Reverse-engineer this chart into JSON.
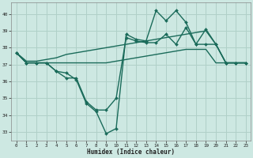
{
  "xlabel": "Humidex (Indice chaleur)",
  "xlim": [
    -0.5,
    23.5
  ],
  "ylim": [
    32.5,
    40.7
  ],
  "xticks": [
    0,
    1,
    2,
    3,
    4,
    5,
    6,
    7,
    8,
    9,
    10,
    11,
    12,
    13,
    14,
    15,
    16,
    17,
    18,
    19,
    20,
    21,
    22,
    23
  ],
  "yticks": [
    33,
    34,
    35,
    36,
    37,
    38,
    39,
    40
  ],
  "background_color": "#cde8e2",
  "grid_color": "#b0d0c8",
  "line_color": "#1a6b5a",
  "series": [
    {
      "x": [
        0,
        1,
        2,
        3,
        4,
        5,
        6,
        7,
        8,
        9,
        10,
        11,
        12,
        13,
        14,
        15,
        16,
        17,
        18,
        19,
        20,
        21,
        22,
        23
      ],
      "y": [
        37.7,
        37.1,
        37.1,
        37.1,
        37.1,
        37.1,
        37.1,
        37.1,
        37.1,
        37.1,
        37.2,
        37.3,
        37.4,
        37.5,
        37.6,
        37.7,
        37.8,
        37.9,
        37.9,
        37.9,
        37.1,
        37.1,
        37.1,
        37.1
      ],
      "has_markers": false,
      "lw": 1.0
    },
    {
      "x": [
        0,
        1,
        2,
        3,
        4,
        5,
        6,
        7,
        8,
        9,
        10,
        11,
        12,
        13,
        14,
        15,
        16,
        17,
        18,
        19,
        20,
        21,
        22,
        23
      ],
      "y": [
        37.7,
        37.2,
        37.2,
        37.3,
        37.4,
        37.6,
        37.7,
        37.8,
        37.9,
        38.0,
        38.1,
        38.2,
        38.3,
        38.4,
        38.5,
        38.6,
        38.7,
        38.8,
        38.9,
        39.0,
        38.2,
        37.1,
        37.1,
        37.1
      ],
      "has_markers": false,
      "lw": 1.0
    },
    {
      "x": [
        0,
        1,
        2,
        3,
        4,
        5,
        6,
        7,
        8,
        9,
        10,
        11,
        12,
        13,
        14,
        15,
        16,
        17,
        18,
        19,
        20,
        21,
        22,
        23
      ],
      "y": [
        37.7,
        37.1,
        37.1,
        37.1,
        36.6,
        36.2,
        36.2,
        34.8,
        34.3,
        34.3,
        35.0,
        38.6,
        38.4,
        38.3,
        38.3,
        38.8,
        38.2,
        39.2,
        38.2,
        38.2,
        38.2,
        37.1,
        37.1,
        37.1
      ],
      "has_markers": true,
      "lw": 1.0
    },
    {
      "x": [
        0,
        1,
        2,
        3,
        4,
        5,
        6,
        7,
        8,
        9,
        10,
        11,
        12,
        13,
        14,
        15,
        16,
        17,
        18,
        19,
        20,
        21,
        22,
        23
      ],
      "y": [
        37.7,
        37.1,
        37.1,
        37.1,
        36.6,
        36.5,
        36.1,
        34.7,
        34.2,
        32.9,
        33.2,
        38.8,
        38.5,
        38.4,
        40.2,
        39.6,
        40.2,
        39.5,
        38.2,
        39.1,
        38.2,
        37.1,
        37.1,
        37.1
      ],
      "has_markers": true,
      "lw": 1.0
    }
  ]
}
